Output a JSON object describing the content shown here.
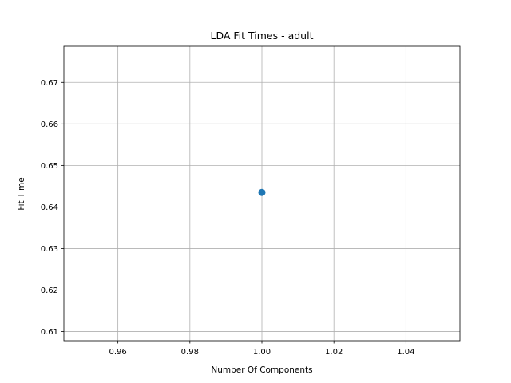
{
  "chart_data": {
    "type": "scatter",
    "title": "LDA Fit Times - adult",
    "xlabel": "Number Of Components",
    "ylabel": "Fit Time",
    "xlim": [
      0.945,
      1.055
    ],
    "ylim": [
      0.6078,
      0.6787
    ],
    "xticks": [
      0.96,
      0.98,
      1.0,
      1.02,
      1.04
    ],
    "xtick_labels": [
      "0.96",
      "0.98",
      "1.00",
      "1.02",
      "1.04"
    ],
    "yticks": [
      0.61,
      0.62,
      0.63,
      0.64,
      0.65,
      0.66,
      0.67
    ],
    "ytick_labels": [
      "0.61",
      "0.62",
      "0.63",
      "0.64",
      "0.65",
      "0.66",
      "0.67"
    ],
    "grid": true,
    "series": [
      {
        "x": [
          1.0
        ],
        "y": [
          0.6435
        ],
        "color": "#1f77b4",
        "marker": "o"
      }
    ]
  }
}
